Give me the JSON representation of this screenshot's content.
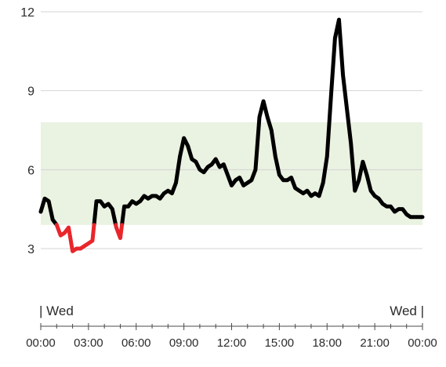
{
  "chart_data": {
    "type": "line",
    "title": "",
    "xlabel": "",
    "ylabel": "",
    "ylim": [
      3,
      12
    ],
    "yticks": [
      "3",
      "6",
      "9",
      "12"
    ],
    "xlim": [
      0,
      24
    ],
    "xticks": [
      "00:00",
      "03:00",
      "06:00",
      "09:00",
      "12:00",
      "15:00",
      "18:00",
      "21:00",
      "00:00"
    ],
    "day_labels": {
      "start": "| Wed",
      "end": "Wed |"
    },
    "grid": true,
    "target_range": [
      3.9,
      7.8
    ],
    "low_threshold": 3.9,
    "colors": {
      "line": "#000000",
      "low": "#e8262b",
      "band": "#eaf2e1",
      "grid": "#d4d4d4",
      "axis": "#4a4a4a"
    },
    "series": [
      {
        "x": [
          0.0,
          0.25,
          0.5,
          0.75,
          1.0,
          1.25,
          1.5,
          1.75,
          2.0,
          2.25,
          2.5,
          2.75,
          3.0,
          3.25,
          3.5,
          3.75,
          4.0,
          4.25,
          4.5,
          4.75,
          5.0,
          5.25,
          5.5,
          5.75,
          6.0,
          6.25,
          6.5,
          6.75,
          7.0,
          7.25,
          7.5,
          7.75,
          8.0,
          8.25,
          8.5,
          8.75,
          9.0,
          9.25,
          9.5,
          9.75,
          10.0,
          10.25,
          10.5,
          10.75,
          11.0,
          11.25,
          11.5,
          11.75,
          12.0,
          12.25,
          12.5,
          12.75,
          13.0,
          13.25,
          13.5,
          13.75,
          14.0,
          14.25,
          14.5,
          14.75,
          15.0,
          15.25,
          15.5,
          15.75,
          16.0,
          16.25,
          16.5,
          16.75,
          17.0,
          17.25,
          17.5,
          17.75,
          18.0,
          18.25,
          18.5,
          18.75,
          19.0,
          19.25,
          19.5,
          19.75,
          20.0,
          20.25,
          20.5,
          20.75,
          21.0,
          21.25,
          21.5,
          21.75,
          22.0,
          22.25,
          22.5,
          22.75,
          23.0,
          23.25,
          23.5,
          23.75,
          24.0
        ],
        "values": [
          4.4,
          4.9,
          4.8,
          4.1,
          3.9,
          3.5,
          3.6,
          3.8,
          2.9,
          3.0,
          3.0,
          3.1,
          3.2,
          3.3,
          4.8,
          4.8,
          4.6,
          4.7,
          4.5,
          3.8,
          3.4,
          4.6,
          4.6,
          4.8,
          4.7,
          4.8,
          5.0,
          4.9,
          5.0,
          5.0,
          4.9,
          5.1,
          5.2,
          5.1,
          5.5,
          6.5,
          7.2,
          6.9,
          6.4,
          6.3,
          6.0,
          5.9,
          6.1,
          6.2,
          6.4,
          6.1,
          6.2,
          5.8,
          5.4,
          5.6,
          5.7,
          5.4,
          5.5,
          5.6,
          6.0,
          8.0,
          8.6,
          8.0,
          7.5,
          6.5,
          5.8,
          5.6,
          5.6,
          5.7,
          5.3,
          5.2,
          5.1,
          5.2,
          5.0,
          5.1,
          5.0,
          5.5,
          6.5,
          8.8,
          11.0,
          11.7,
          9.6,
          8.3,
          7.0,
          5.2,
          5.6,
          6.3,
          5.8,
          5.2,
          5.0,
          4.9,
          4.7,
          4.6,
          4.6,
          4.4,
          4.5,
          4.5,
          4.3,
          4.2,
          4.2,
          4.2,
          4.2
        ]
      }
    ]
  }
}
